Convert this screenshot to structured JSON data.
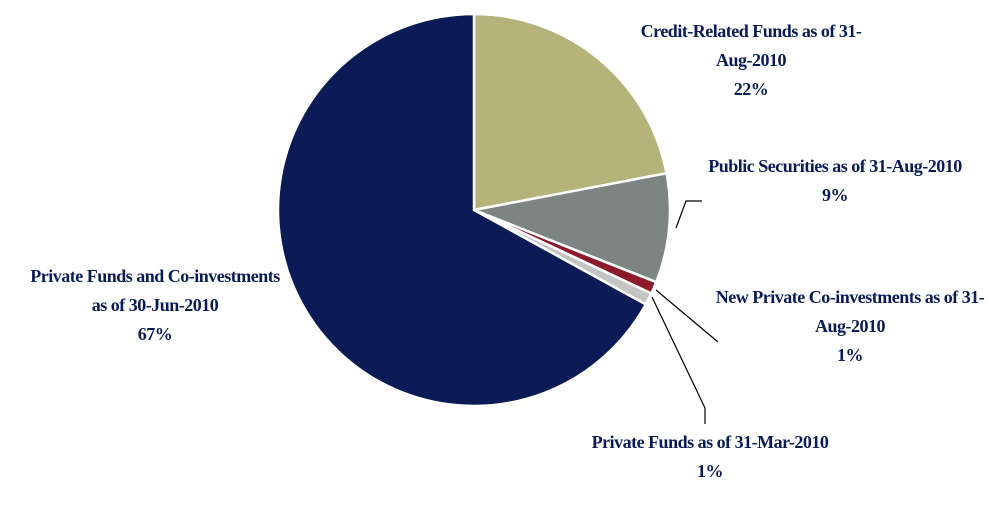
{
  "chart_data": {
    "type": "pie",
    "categories": [
      "Credit-Related Funds as of 31-Aug-2010",
      "Public Securities as of 31-Aug-2010",
      "New Private Co-investments as of 31-Aug-2010",
      "Private Funds as of 31-Mar-2010",
      "Private Funds and Co-investments as of 30-Jun-2010"
    ],
    "values": [
      22,
      9,
      1,
      1,
      67
    ],
    "value_labels": [
      "22%",
      "9%",
      "1%",
      "1%",
      "67%"
    ],
    "colors": [
      "#b5b37a",
      "#7d8583",
      "#8b1a2b",
      "#c4c4c4",
      "#0b1b56"
    ]
  }
}
